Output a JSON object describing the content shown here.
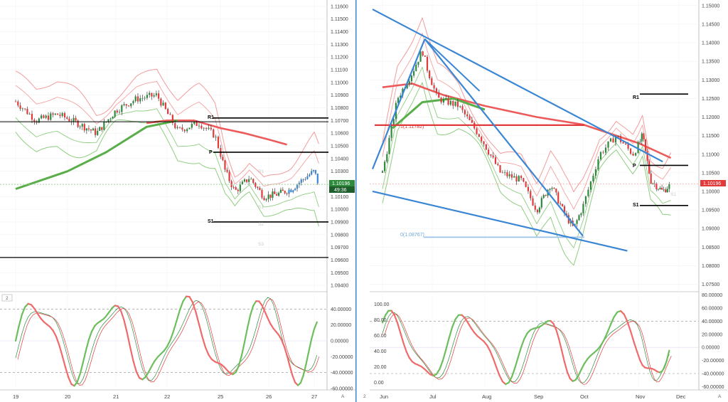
{
  "colors": {
    "up": "#2e8b3e",
    "down": "#e23a3a",
    "blue": "#3a86d4",
    "price_badge": "#e23a3a",
    "ma_red": "#ec5a5a",
    "ma_green": "#5aae4a",
    "bb_red": "#f28a8a",
    "bb_green": "#7cc46c"
  },
  "left": {
    "price_axis": [
      "1.11600",
      "1.11500",
      "1.11400",
      "1.11300",
      "1.11200",
      "1.11100",
      "1.11000",
      "1.10900",
      "1.10800",
      "1.10700",
      "1.10600",
      "1.10500",
      "1.10400",
      "1.10300",
      "1.10200",
      "1.10100",
      "1.10000",
      "1.09900",
      "1.09800",
      "1.09700",
      "1.09600",
      "1.09500",
      "1.09400"
    ],
    "price_badge": "1.10196",
    "timer_badge": "49:36",
    "pivot_labels": {
      "r1": "R1",
      "p": "P",
      "s1": "S1",
      "faint": [
        "R1",
        "S1",
        "S2",
        "S3"
      ]
    },
    "osc_tag": "2",
    "osc_axis": [
      "60.00000",
      "40.00000",
      "20.00000",
      "0.00000",
      "-20.00000",
      "-40.00000",
      "-60.00000"
    ],
    "x_axis": [
      "19",
      "20",
      "21",
      "22",
      "25",
      "26",
      "27"
    ],
    "corner": "A"
  },
  "right": {
    "price_axis": [
      "1.15000",
      "1.14500",
      "1.14000",
      "1.13500",
      "1.13000",
      "1.12500",
      "1.12000",
      "1.11500",
      "1.11000",
      "1.10500",
      "1.10000",
      "1.09500",
      "1.09000",
      "1.08500",
      "1.08000",
      "1.07500"
    ],
    "price_badge": "1.10196",
    "pivot_labels": {
      "r1": "R1",
      "p": "P",
      "s1": "S1",
      "faint": "S1"
    },
    "annotations": {
      "top": "1(1.11782)",
      "bottom": "0(1.08767)"
    },
    "osc_tag": "2",
    "osc_left_axis": [
      "100.00",
      "80.00",
      "60.00",
      "40.00",
      "20.00",
      "0.00"
    ],
    "osc_axis": [
      "80.00000",
      "60.00000",
      "40.00000",
      "20.00000",
      "0.00000",
      "-20.00000",
      "-40.00000",
      "-60.00000"
    ],
    "x_axis": [
      "Jun",
      "Jul",
      "Aug",
      "Sep",
      "Oct",
      "Nov",
      "Dec"
    ],
    "corner": "A"
  },
  "chart_data": [
    {
      "type": "candlestick",
      "timeframe_axis": [
        "19",
        "20",
        "21",
        "22",
        "25",
        "26",
        "27"
      ],
      "ylim": [
        1.0935,
        1.1165
      ],
      "levels": {
        "R1": 1.1072,
        "P": 1.1045,
        "S1": 1.099,
        "extra": 1.0962,
        "last": 1.10196
      },
      "close_path": [
        [
          0,
          1.1085
        ],
        [
          0.4,
          1.107
        ],
        [
          0.8,
          1.1075
        ],
        [
          1.2,
          1.1068
        ],
        [
          1.6,
          1.106
        ],
        [
          2.0,
          1.1078
        ],
        [
          2.4,
          1.1087
        ],
        [
          2.8,
          1.109
        ],
        [
          3.2,
          1.1062
        ],
        [
          3.6,
          1.1068
        ],
        [
          3.9,
          1.1058
        ],
        [
          4.1,
          1.103
        ],
        [
          4.3,
          1.1014
        ],
        [
          4.6,
          1.1025
        ],
        [
          4.9,
          1.101
        ],
        [
          5.2,
          1.1012
        ],
        [
          5.5,
          1.1016
        ],
        [
          5.8,
          1.1025
        ],
        [
          6.0,
          1.103
        ],
        [
          6.1,
          1.1019
        ]
      ],
      "ma200": [
        [
          2.6,
          1.1068
        ],
        [
          3.0,
          1.107
        ],
        [
          3.5,
          1.107
        ],
        [
          4.0,
          1.1064
        ],
        [
          4.5,
          1.106
        ],
        [
          5.0,
          1.1055
        ],
        [
          5.4,
          1.1051
        ]
      ],
      "ma_green": [
        [
          0,
          1.1016
        ],
        [
          1.0,
          1.103
        ],
        [
          1.8,
          1.1045
        ],
        [
          2.6,
          1.1065
        ],
        [
          3.2,
          1.107
        ]
      ],
      "oscillator_range": [
        -60,
        60
      ]
    },
    {
      "type": "candlestick",
      "timeframe_axis": [
        "Jun",
        "Jul",
        "Aug",
        "Sep",
        "Oct",
        "Nov",
        "Dec"
      ],
      "ylim": [
        1.073,
        1.1515
      ],
      "levels": {
        "R1": 1.1262,
        "P": 1.107,
        "S1": 1.0962,
        "fib_1": 1.11782,
        "fib_0": 1.08767,
        "last": 1.10196
      },
      "close_path": [
        [
          0,
          1.105
        ],
        [
          0.3,
          1.125
        ],
        [
          0.6,
          1.132
        ],
        [
          0.8,
          1.138
        ],
        [
          0.9,
          1.133
        ],
        [
          1.1,
          1.125
        ],
        [
          1.5,
          1.123
        ],
        [
          1.9,
          1.115
        ],
        [
          2.3,
          1.105
        ],
        [
          2.7,
          1.103
        ],
        [
          3.0,
          1.095
        ],
        [
          3.3,
          1.102
        ],
        [
          3.6,
          1.094
        ],
        [
          3.8,
          1.09
        ],
        [
          4.0,
          1.096
        ],
        [
          4.3,
          1.11
        ],
        [
          4.6,
          1.115
        ],
        [
          4.9,
          1.11
        ],
        [
          5.1,
          1.115
        ],
        [
          5.3,
          1.103
        ],
        [
          5.6,
          1.1
        ],
        [
          5.8,
          1.102
        ]
      ],
      "ma200": [
        [
          0,
          1.128
        ],
        [
          0.6,
          1.129
        ],
        [
          1.2,
          1.126
        ],
        [
          2.0,
          1.123
        ],
        [
          3.0,
          1.12
        ],
        [
          4.0,
          1.118
        ],
        [
          5.0,
          1.113
        ],
        [
          5.8,
          1.109
        ]
      ],
      "ma_green": [
        [
          0.2,
          1.117
        ],
        [
          0.8,
          1.124
        ],
        [
          1.4,
          1.125
        ],
        [
          2.0,
          1.122
        ]
      ],
      "trendlines": "descending wedge",
      "oscillator_range": [
        -60,
        80
      ]
    }
  ]
}
